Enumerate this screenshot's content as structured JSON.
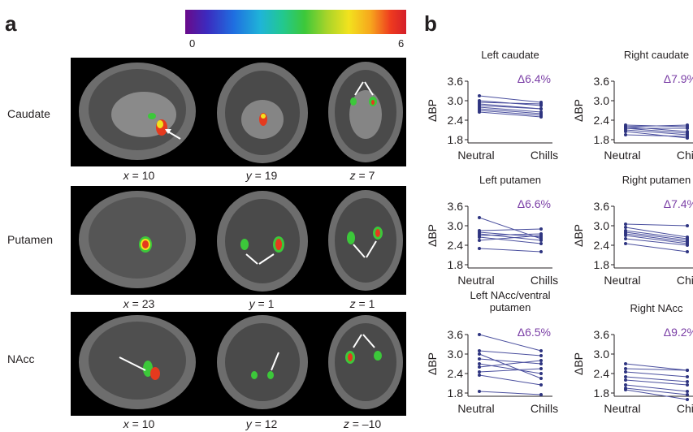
{
  "panel_a": {
    "letter": "a",
    "colorbar": {
      "min_label": "0",
      "max_label": "6"
    },
    "rows": [
      {
        "label": "Caudate",
        "coords": [
          {
            "axis": "x",
            "eq": " = 10"
          },
          {
            "axis": "y",
            "eq": " = 19"
          },
          {
            "axis": "z",
            "eq": " = 7"
          }
        ]
      },
      {
        "label": "Putamen",
        "coords": [
          {
            "axis": "x",
            "eq": " = 23"
          },
          {
            "axis": "y",
            "eq": " = 1"
          },
          {
            "axis": "z",
            "eq": " = 1"
          }
        ]
      },
      {
        "label": "NAcc",
        "coords": [
          {
            "axis": "x",
            "eq": " = 10"
          },
          {
            "axis": "y",
            "eq": " = 12"
          },
          {
            "axis": "z",
            "eq": " = –10"
          }
        ]
      }
    ]
  },
  "panel_b": {
    "letter": "b"
  },
  "chart_data": [
    {
      "type": "line",
      "title": "Left caudate",
      "annotation": "Δ6.4%",
      "ylabel": "ΔBP",
      "categories": [
        "Neutral",
        "Chills"
      ],
      "yticks": [
        "3.6",
        "3.0",
        "2.4",
        "1.8"
      ],
      "ylim": [
        1.8,
        3.6
      ],
      "series": [
        {
          "values": [
            3.15,
            2.95
          ]
        },
        {
          "values": [
            3.0,
            2.85
          ]
        },
        {
          "values": [
            2.95,
            2.9
          ]
        },
        {
          "values": [
            2.9,
            2.75
          ]
        },
        {
          "values": [
            2.85,
            2.75
          ]
        },
        {
          "values": [
            2.8,
            2.65
          ]
        },
        {
          "values": [
            2.75,
            2.6
          ]
        },
        {
          "values": [
            2.7,
            2.55
          ]
        },
        {
          "values": [
            2.65,
            2.5
          ]
        }
      ]
    },
    {
      "type": "line",
      "title": "Right caudate",
      "annotation": "Δ7.9%",
      "ylabel": "ΔBP",
      "categories": [
        "Neutral",
        "Chills"
      ],
      "yticks": [
        "3.6",
        "3.0",
        "2.4",
        "1.8"
      ],
      "ylim": [
        1.8,
        3.6
      ],
      "series": [
        {
          "values": [
            2.25,
            2.2
          ]
        },
        {
          "values": [
            2.2,
            2.25
          ]
        },
        {
          "values": [
            2.2,
            2.05
          ]
        },
        {
          "values": [
            2.15,
            2.0
          ]
        },
        {
          "values": [
            2.1,
            1.95
          ]
        },
        {
          "values": [
            1.95,
            1.9
          ]
        },
        {
          "values": [
            2.05,
            1.85
          ]
        },
        {
          "values": [
            2.15,
            2.15
          ]
        }
      ]
    },
    {
      "type": "line",
      "title": "Left putamen",
      "annotation": "Δ6.6%",
      "ylabel": "ΔBP",
      "categories": [
        "Neutral",
        "Chills"
      ],
      "yticks": [
        "3.6",
        "3.0",
        "2.4",
        "1.8"
      ],
      "ylim": [
        1.8,
        3.6
      ],
      "series": [
        {
          "values": [
            3.25,
            2.6
          ]
        },
        {
          "values": [
            2.85,
            2.9
          ]
        },
        {
          "values": [
            2.8,
            2.65
          ]
        },
        {
          "values": [
            2.75,
            2.55
          ]
        },
        {
          "values": [
            2.7,
            2.75
          ]
        },
        {
          "values": [
            2.65,
            2.45
          ]
        },
        {
          "values": [
            2.55,
            2.7
          ]
        },
        {
          "values": [
            2.3,
            2.2
          ]
        }
      ]
    },
    {
      "type": "line",
      "title": "Right putamen",
      "annotation": "Δ7.4%",
      "ylabel": "ΔBP",
      "categories": [
        "Neutral",
        "Chills"
      ],
      "yticks": [
        "3.6",
        "3.0",
        "2.4",
        "1.8"
      ],
      "ylim": [
        1.8,
        3.6
      ],
      "series": [
        {
          "values": [
            3.05,
            3.0
          ]
        },
        {
          "values": [
            2.95,
            2.65
          ]
        },
        {
          "values": [
            2.85,
            2.6
          ]
        },
        {
          "values": [
            2.8,
            2.55
          ]
        },
        {
          "values": [
            2.75,
            2.5
          ]
        },
        {
          "values": [
            2.7,
            2.45
          ]
        },
        {
          "values": [
            2.6,
            2.4
          ]
        },
        {
          "values": [
            2.45,
            2.2
          ]
        }
      ]
    },
    {
      "type": "line",
      "title": "Left NAcc/ventral\nputamen",
      "annotation": "Δ6.5%",
      "ylabel": "ΔBP",
      "categories": [
        "Neutral",
        "Chills"
      ],
      "yticks": [
        "3.6",
        "3.0",
        "2.4",
        "1.8"
      ],
      "ylim": [
        1.8,
        3.6
      ],
      "series": [
        {
          "values": [
            3.6,
            3.1
          ]
        },
        {
          "values": [
            3.1,
            2.95
          ]
        },
        {
          "values": [
            3.0,
            2.25
          ]
        },
        {
          "values": [
            2.85,
            2.7
          ]
        },
        {
          "values": [
            2.6,
            2.8
          ]
        },
        {
          "values": [
            2.45,
            2.55
          ]
        },
        {
          "values": [
            2.35,
            2.05
          ]
        },
        {
          "values": [
            1.85,
            1.75
          ]
        },
        {
          "values": [
            2.7,
            2.4
          ]
        }
      ]
    },
    {
      "type": "line",
      "title": "Right NAcc",
      "annotation": "Δ9.2%",
      "ylabel": "ΔBP",
      "categories": [
        "Neutral",
        "Chills"
      ],
      "yticks": [
        "3.6",
        "3.0",
        "2.4",
        "1.8"
      ],
      "ylim": [
        1.8,
        3.6
      ],
      "series": [
        {
          "values": [
            2.7,
            2.5
          ]
        },
        {
          "values": [
            2.55,
            2.5
          ]
        },
        {
          "values": [
            2.45,
            2.3
          ]
        },
        {
          "values": [
            2.3,
            2.15
          ]
        },
        {
          "values": [
            2.2,
            2.05
          ]
        },
        {
          "values": [
            2.05,
            1.85
          ]
        },
        {
          "values": [
            1.95,
            1.75
          ]
        },
        {
          "values": [
            1.9,
            1.6
          ]
        }
      ]
    }
  ]
}
